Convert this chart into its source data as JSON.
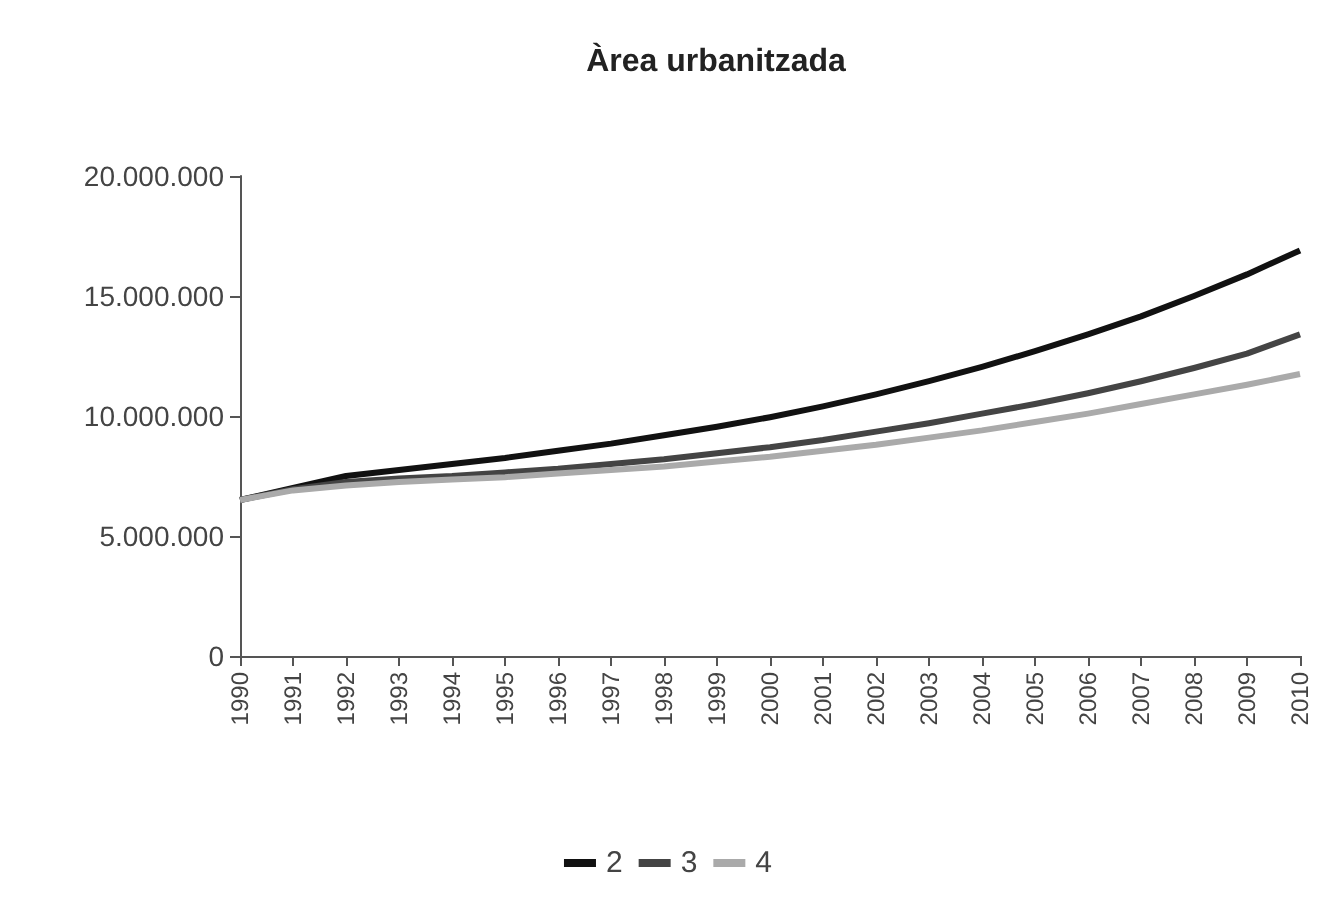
{
  "chart_data": {
    "type": "line",
    "title": "Àrea urbanitzada",
    "categories": [
      "1990",
      "1991",
      "1992",
      "1993",
      "1994",
      "1995",
      "1996",
      "1997",
      "1998",
      "1999",
      "2000",
      "2001",
      "2002",
      "2003",
      "2004",
      "2005",
      "2006",
      "2007",
      "2008",
      "2009",
      "2010"
    ],
    "series": [
      {
        "name": "2",
        "color": "#111111",
        "values": [
          6500000,
          7000000,
          7500000,
          7750000,
          8000000,
          8250000,
          8550000,
          8850000,
          9200000,
          9550000,
          9950000,
          10400000,
          10900000,
          11450000,
          12050000,
          12700000,
          13400000,
          14150000,
          15000000,
          15900000,
          16900000
        ]
      },
      {
        "name": "3",
        "color": "#444444",
        "values": [
          6500000,
          6950000,
          7250000,
          7400000,
          7500000,
          7650000,
          7800000,
          8000000,
          8200000,
          8450000,
          8700000,
          9000000,
          9350000,
          9700000,
          10100000,
          10500000,
          10950000,
          11450000,
          12000000,
          12600000,
          13400000
        ]
      },
      {
        "name": "4",
        "color": "#aaaaaa",
        "values": [
          6500000,
          6900000,
          7100000,
          7250000,
          7350000,
          7450000,
          7600000,
          7750000,
          7900000,
          8100000,
          8300000,
          8550000,
          8800000,
          9100000,
          9400000,
          9750000,
          10100000,
          10500000,
          10900000,
          11300000,
          11750000
        ]
      }
    ],
    "ylim": [
      0,
      20000000
    ],
    "yticks": [
      {
        "value": 0,
        "label": "0"
      },
      {
        "value": 5000000,
        "label": "5.000.000"
      },
      {
        "value": 10000000,
        "label": "10.000.000"
      },
      {
        "value": 15000000,
        "label": "15.000.000"
      },
      {
        "value": 20000000,
        "label": "20.000.000"
      }
    ],
    "grid": false,
    "legend": "bottom",
    "marker": "none",
    "line_style": "solid"
  }
}
